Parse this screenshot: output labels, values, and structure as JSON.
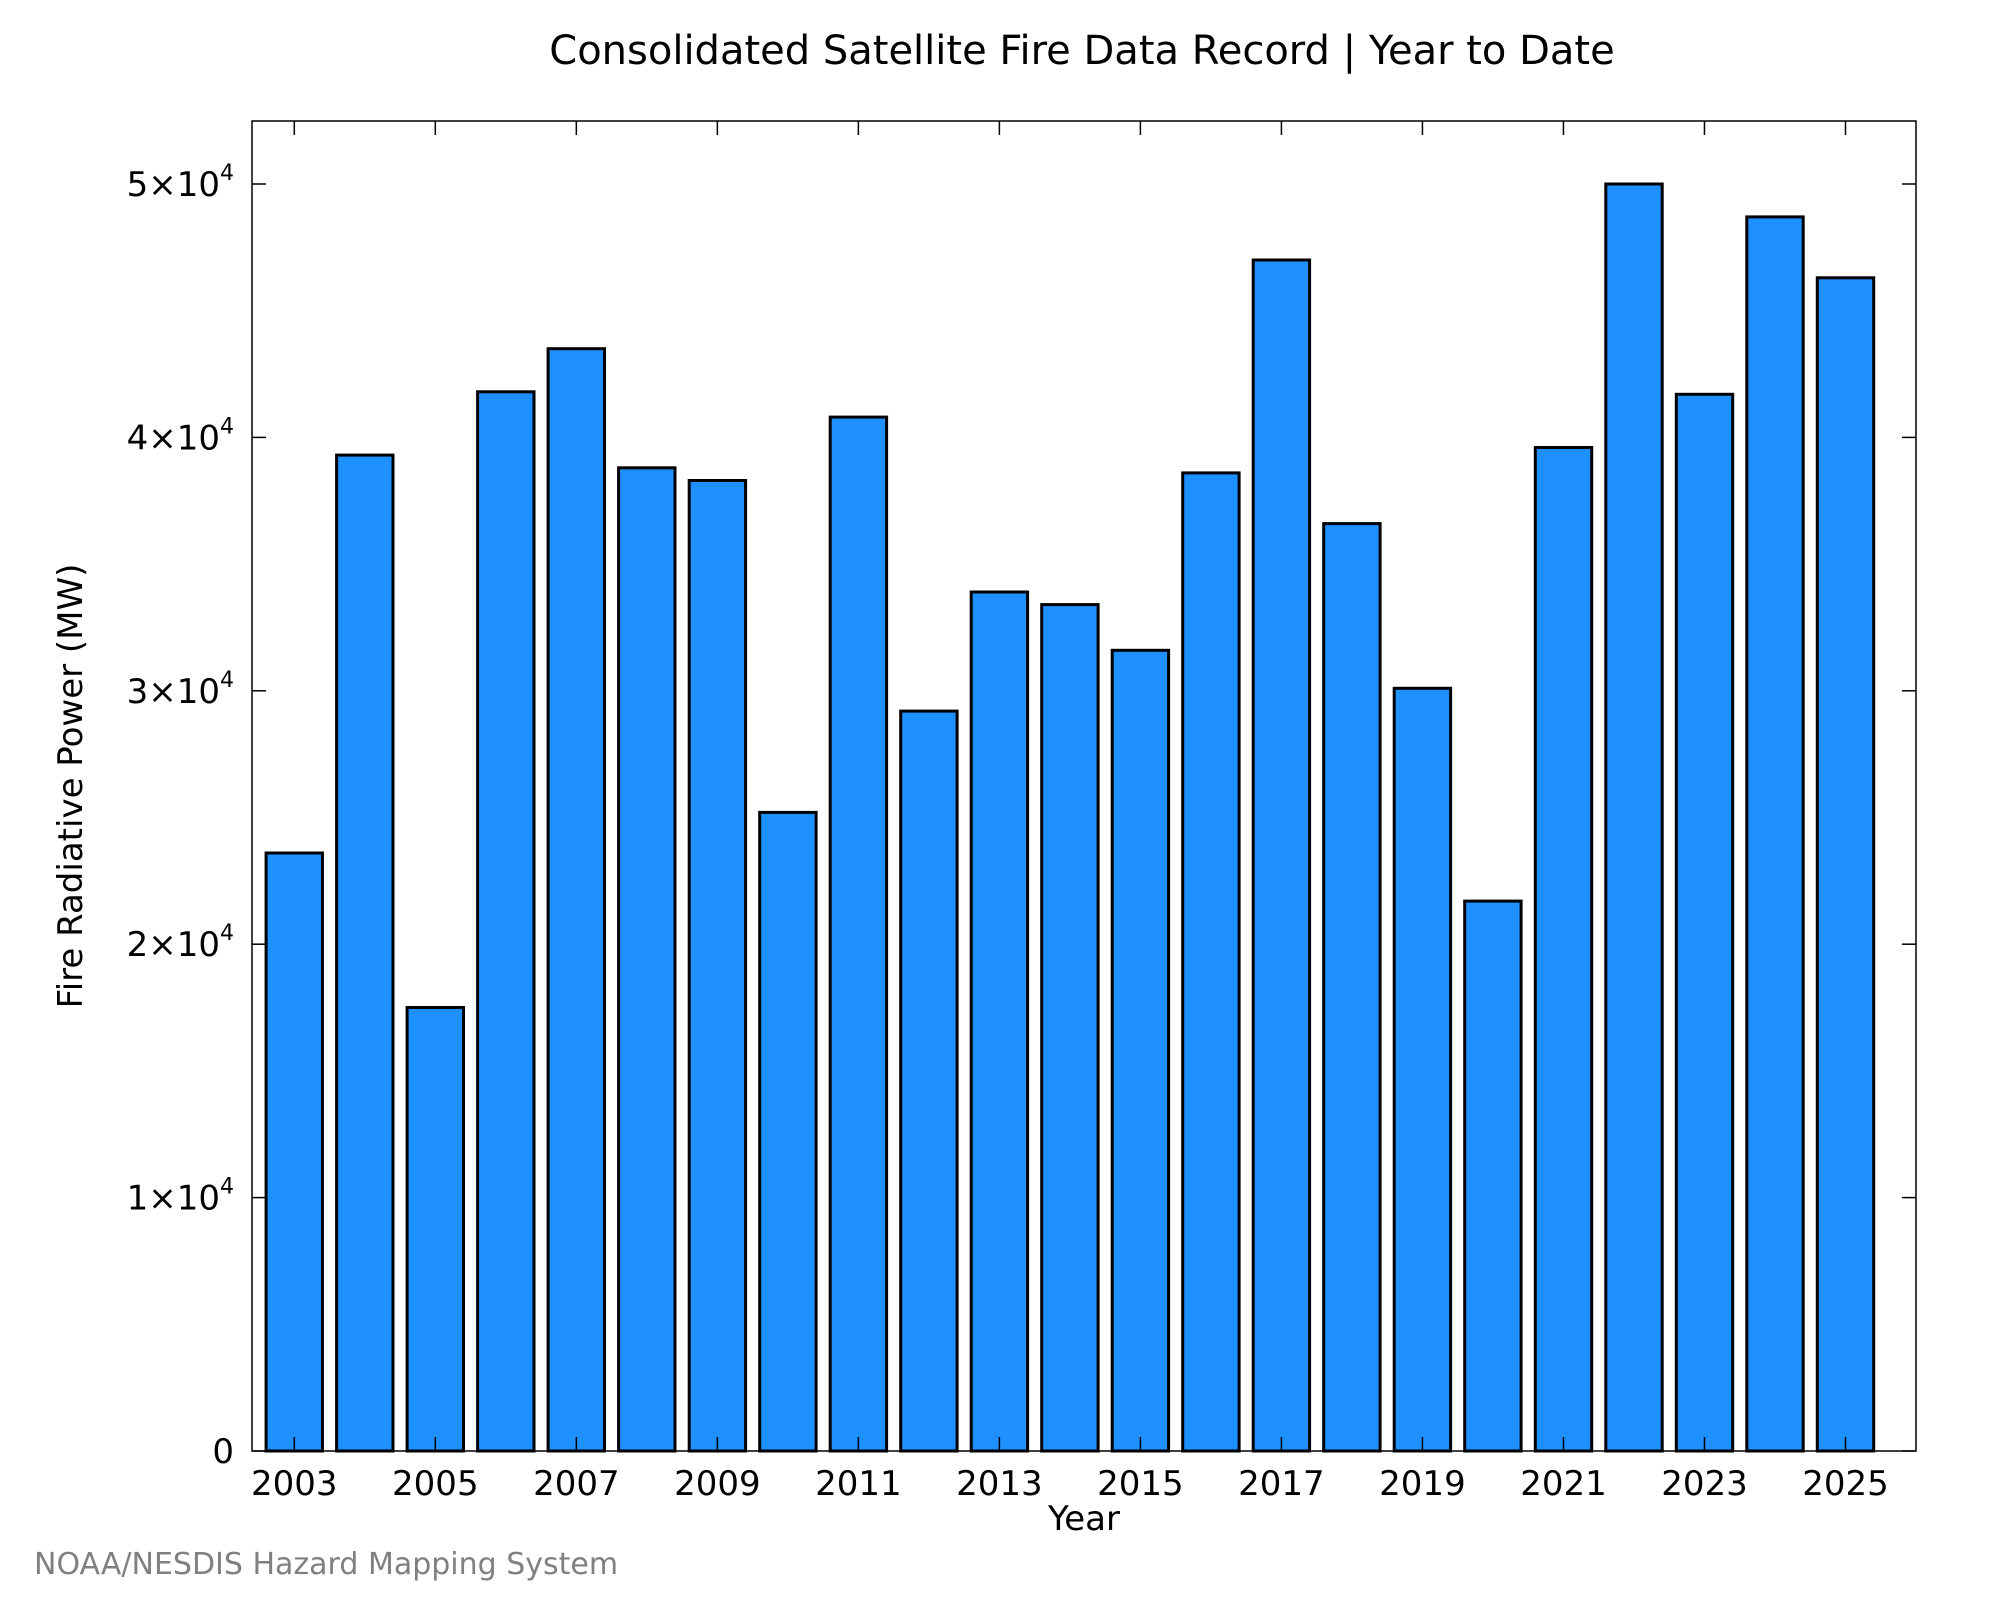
{
  "chart_data": {
    "type": "bar",
    "title": "Consolidated Satellite Fire Data Record | Year to Date",
    "xlabel": "Year",
    "ylabel": "Fire Radiative Power (MW)",
    "categories": [
      "2003",
      "2004",
      "2005",
      "2006",
      "2007",
      "2008",
      "2009",
      "2010",
      "2011",
      "2012",
      "2013",
      "2014",
      "2015",
      "2016",
      "2017",
      "2018",
      "2019",
      "2020",
      "2021",
      "2022",
      "2023",
      "2024",
      "2025"
    ],
    "x_tick_labels": [
      "2003",
      "2005",
      "2007",
      "2009",
      "2011",
      "2013",
      "2015",
      "2017",
      "2019",
      "2021",
      "2023",
      "2025"
    ],
    "values": [
      23600,
      39300,
      17500,
      41800,
      43500,
      38800,
      38300,
      25200,
      40800,
      29200,
      33900,
      33400,
      31600,
      38600,
      47000,
      36600,
      30100,
      21700,
      39600,
      50000,
      41700,
      48700,
      46300
    ],
    "ylim": [
      0,
      50000
    ],
    "xlim": [
      2002.4,
      2026.0
    ],
    "y_ticks": [
      {
        "value": 0,
        "mantissa": "0",
        "exponent": ""
      },
      {
        "value": 10000,
        "mantissa": "1×10",
        "exponent": "4"
      },
      {
        "value": 20000,
        "mantissa": "2×10",
        "exponent": "4"
      },
      {
        "value": 30000,
        "mantissa": "3×10",
        "exponent": "4"
      },
      {
        "value": 40000,
        "mantissa": "4×10",
        "exponent": "4"
      },
      {
        "value": 50000,
        "mantissa": "5×10",
        "exponent": "4"
      }
    ],
    "bar_color": "#1e90ff",
    "grid": false,
    "legend": "none"
  },
  "credit": "NOAA/NESDIS Hazard Mapping System"
}
